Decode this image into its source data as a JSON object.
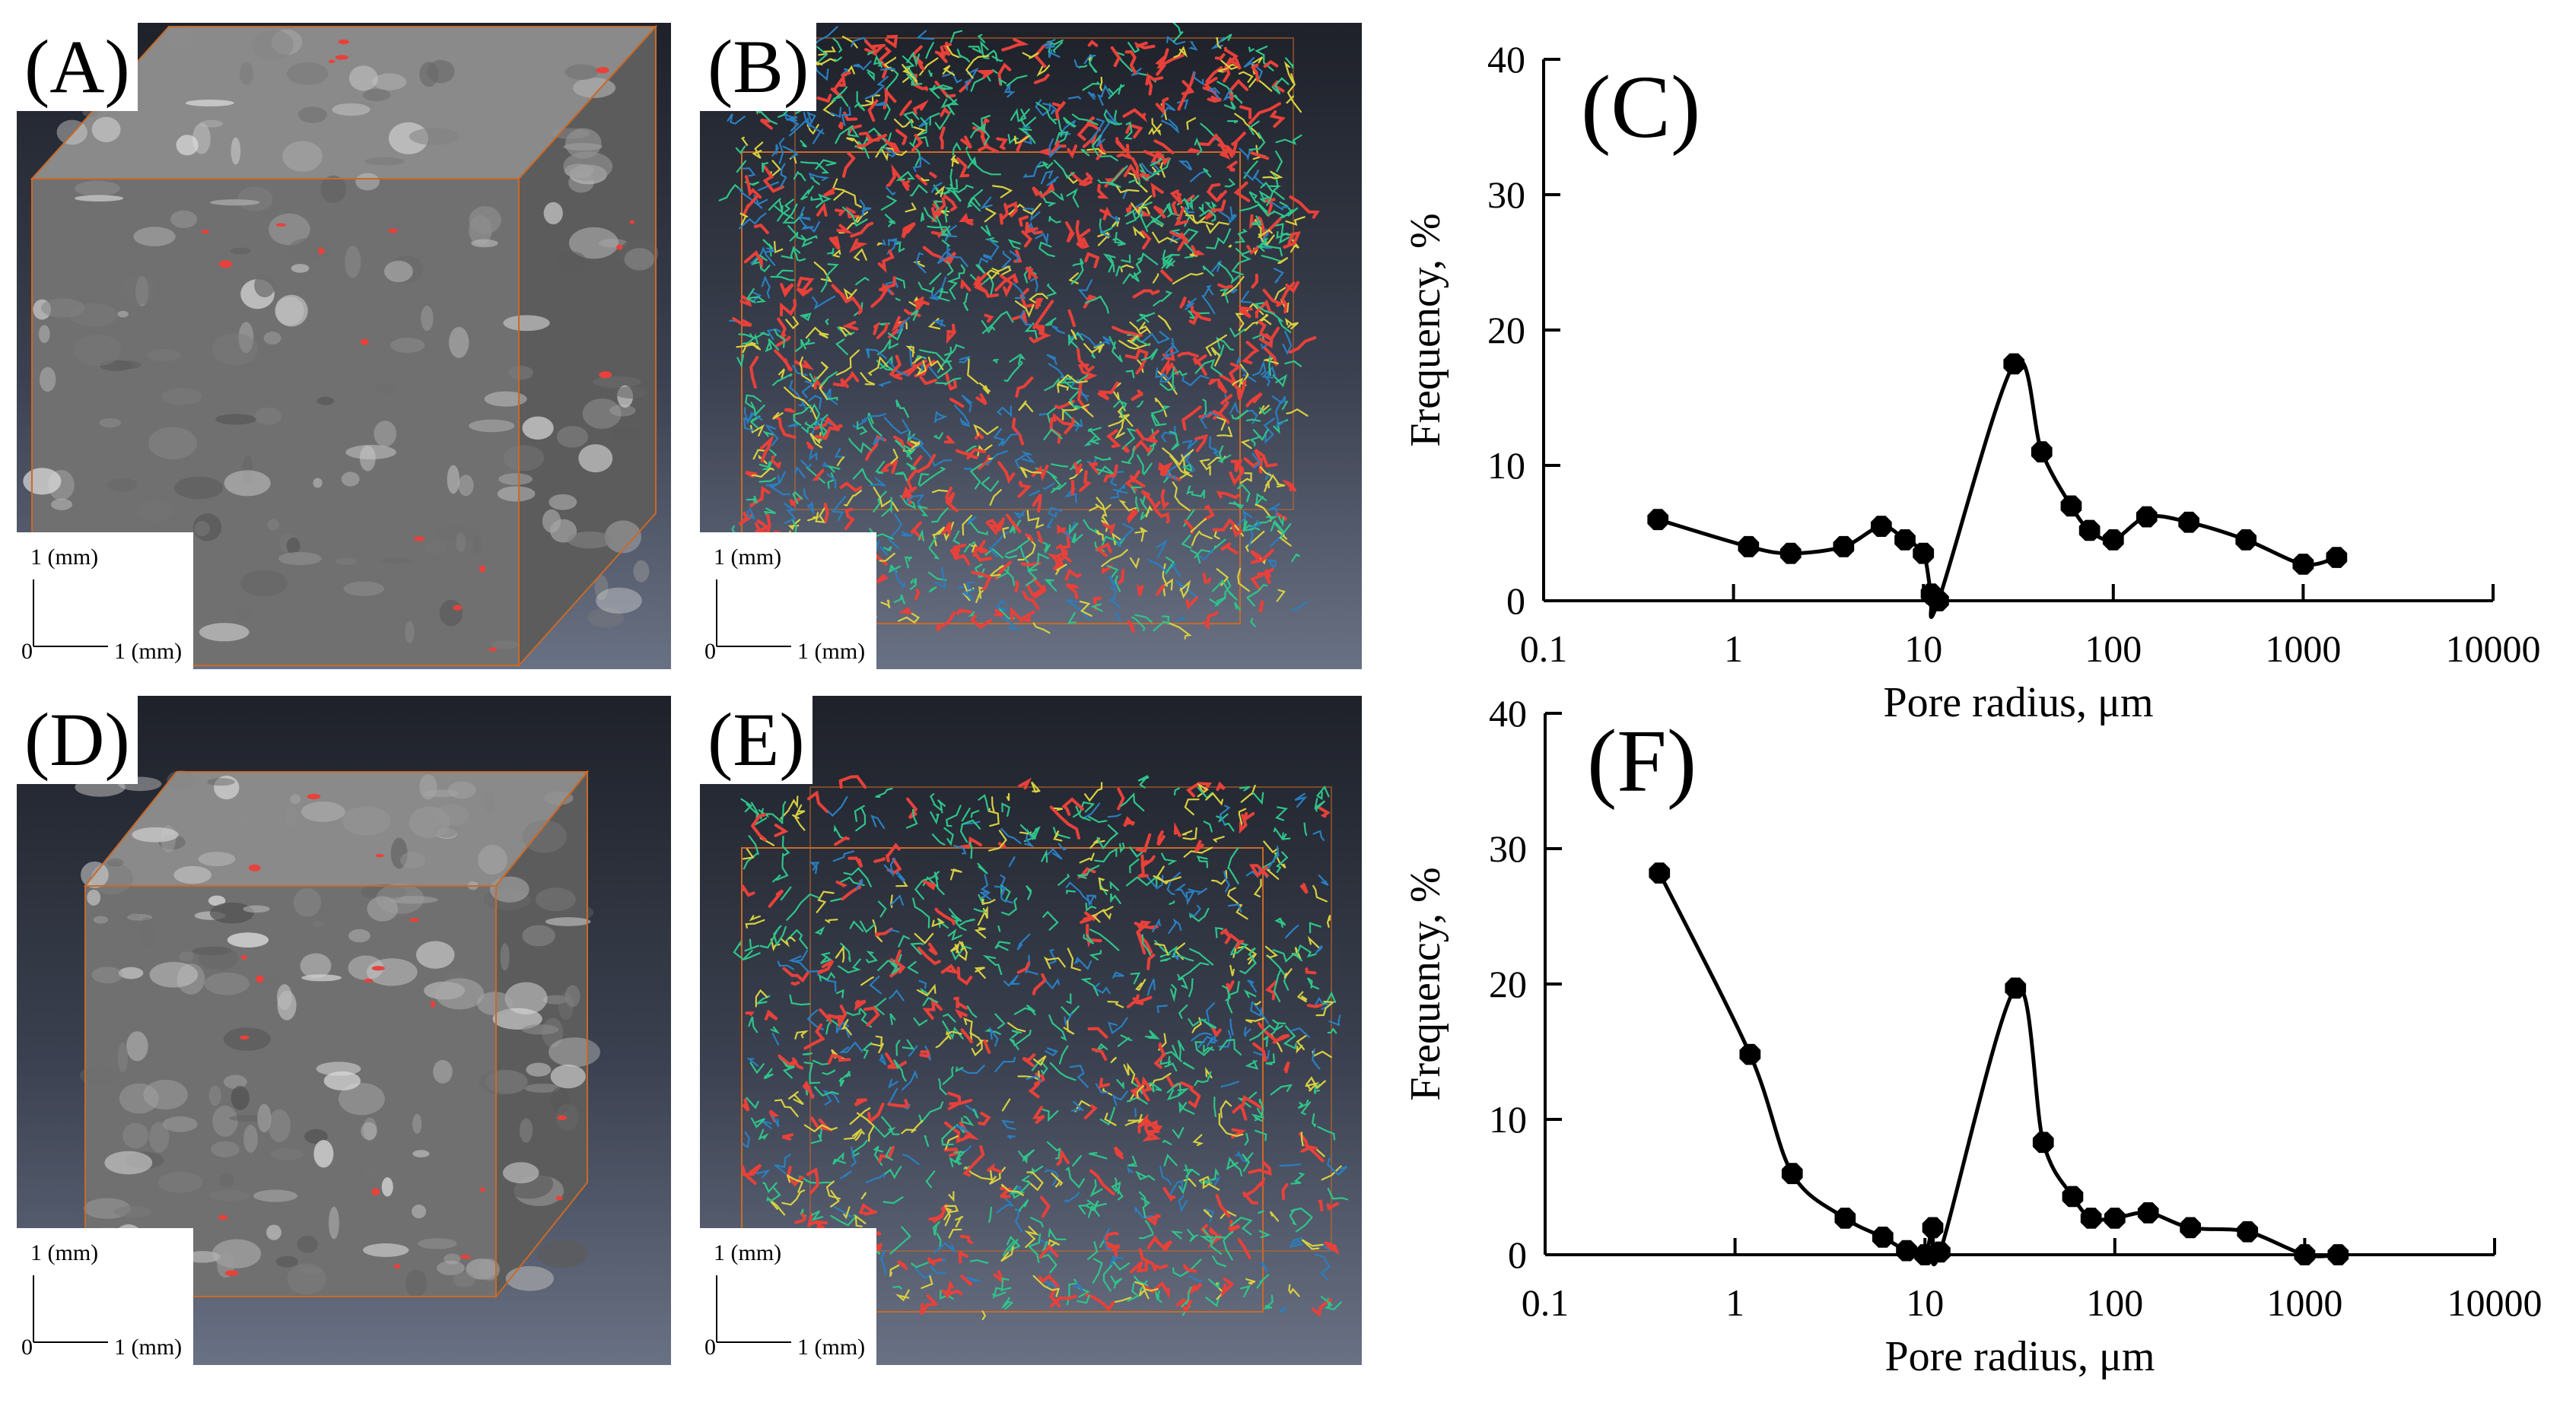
{
  "figure": {
    "panels": [
      {
        "id": "A",
        "label": "(A)",
        "scale_y": "1 (mm)",
        "scale_x": "1 (mm)",
        "scale_origin": "0",
        "style": "ct-cube"
      },
      {
        "id": "B",
        "label": "(B)",
        "scale_y": "1 (mm)",
        "scale_x": "1 (mm)",
        "scale_origin": "0",
        "style": "pore-network"
      },
      {
        "id": "D",
        "label": "(D)",
        "scale_y": "1 (mm)",
        "scale_x": "1 (mm)",
        "scale_origin": "0",
        "style": "ct-cube"
      },
      {
        "id": "E",
        "label": "(E)",
        "scale_y": "1 (mm)",
        "scale_x": "1 (mm)",
        "scale_origin": "0",
        "style": "pore-network"
      }
    ],
    "colors": {
      "pore_red": "#e8413a",
      "pore_green": "#2fc48a",
      "pore_yellow": "#d8d040",
      "pore_blue": "#2a7fc0",
      "frame_orange": "#c86a2a"
    }
  },
  "chart_data": [
    {
      "type": "line",
      "panel_label": "(C)",
      "xscale": "log",
      "xlabel": "Pore radius, μm",
      "ylabel": "Frequency, %",
      "xlim": [
        0.1,
        10000
      ],
      "ylim": [
        0,
        40
      ],
      "xticks": [
        0.1,
        1,
        10,
        100,
        1000,
        10000
      ],
      "xtick_labels": [
        "0.1",
        "1",
        "10",
        "100",
        "1000",
        "10000"
      ],
      "yticks": [
        0,
        10,
        20,
        30,
        40
      ],
      "ytick_labels": [
        "0",
        "10",
        "20",
        "30",
        "40"
      ],
      "series": [
        {
          "name": "Frequency",
          "x": [
            0.4,
            1.2,
            2,
            3.8,
            6,
            8,
            10,
            11,
            12,
            30,
            42,
            60,
            75,
            100,
            150,
            250,
            500,
            1000,
            1500
          ],
          "y": [
            6,
            4,
            3.5,
            4,
            5.5,
            4.5,
            3.5,
            0.5,
            0,
            17.5,
            11,
            7,
            5.2,
            4.5,
            6.2,
            5.8,
            4.5,
            2.7,
            3.2
          ]
        }
      ]
    },
    {
      "type": "line",
      "panel_label": "(F)",
      "xscale": "log",
      "xlabel": "Pore radius, μm",
      "ylabel": "Frequency, %",
      "xlim": [
        0.1,
        10000
      ],
      "ylim": [
        0,
        40
      ],
      "xticks": [
        0.1,
        1,
        10,
        100,
        1000,
        10000
      ],
      "xtick_labels": [
        "0.1",
        "1",
        "10",
        "100",
        "1000",
        "10000"
      ],
      "yticks": [
        0,
        10,
        20,
        30,
        40
      ],
      "ytick_labels": [
        "0",
        "10",
        "20",
        "30",
        "40"
      ],
      "series": [
        {
          "name": "Frequency",
          "x": [
            0.4,
            1.2,
            2,
            3.8,
            6,
            8,
            10,
            11,
            12,
            30,
            42,
            60,
            75,
            100,
            150,
            250,
            500,
            1000,
            1500
          ],
          "y": [
            28.2,
            14.8,
            6,
            2.7,
            1.3,
            0.3,
            0,
            2,
            0.2,
            19.7,
            8.3,
            4.3,
            2.7,
            2.7,
            3.1,
            2,
            1.7,
            0,
            0
          ]
        }
      ]
    }
  ]
}
